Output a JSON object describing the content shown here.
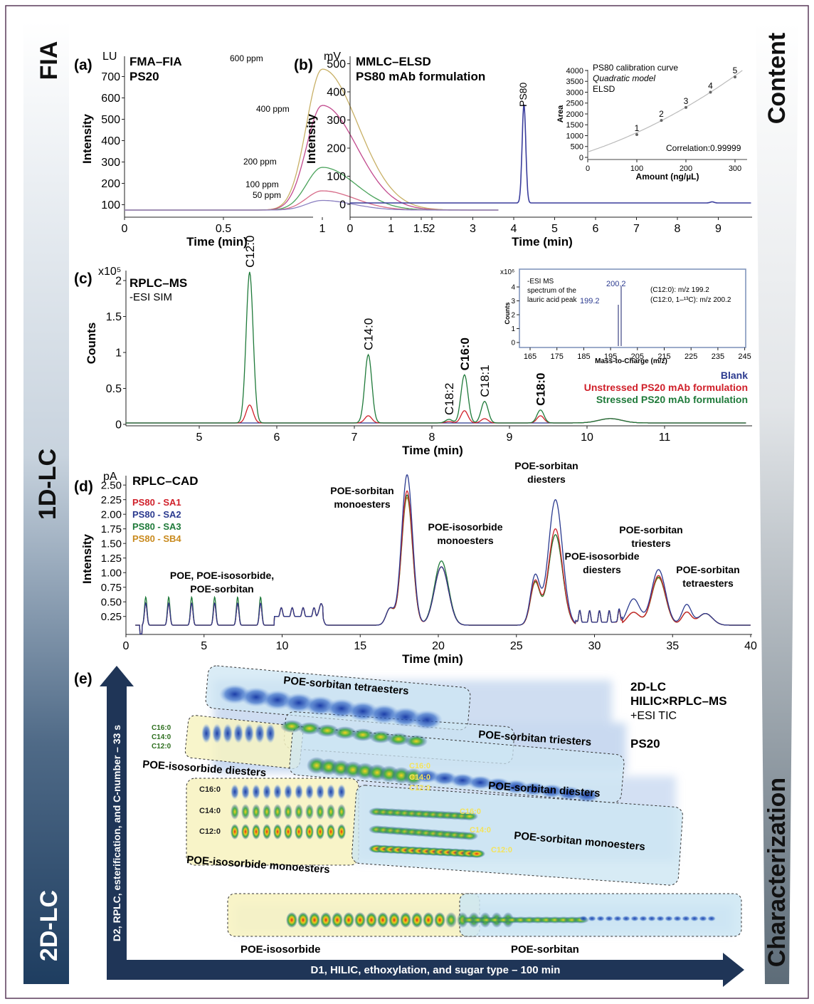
{
  "side_labels": {
    "fia": "FIA",
    "lc1d": "1D-LC",
    "lc2d": "2D-LC",
    "content": "Content",
    "characterization": "Characterization"
  },
  "panel_a": {
    "letter": "(a)",
    "title1": "FMA–FIA",
    "title2": "PS20",
    "unit": "LU",
    "ylabel": "Intensity",
    "xlabel": "Time (min)",
    "xticks": [
      "0",
      "0.5",
      "1",
      "1.5"
    ],
    "yticks": [
      "100",
      "200",
      "300",
      "400",
      "500",
      "600",
      "700"
    ],
    "peaks": [
      {
        "label": "600 ppm",
        "height": 660,
        "color": "#c8b066"
      },
      {
        "label": "400 ppm",
        "height": 490,
        "color": "#c24a8e"
      },
      {
        "label": "200 ppm",
        "height": 200,
        "color": "#4aa35b"
      },
      {
        "label": "100 ppm",
        "height": 90,
        "color": "#d76b88"
      },
      {
        "label": "50 ppm",
        "height": 45,
        "color": "#8a7fc0"
      }
    ]
  },
  "panel_b": {
    "letter": "(b)",
    "title1": "MMLC–ELSD",
    "title2": "PS80 mAb formulation",
    "unit": "mV",
    "ylabel": "Intensity",
    "xlabel": "Time (min)",
    "xticks": [
      "0",
      "1",
      "2",
      "3",
      "4",
      "5",
      "6",
      "7",
      "8",
      "9"
    ],
    "yticks": [
      "0",
      "100",
      "200",
      "300",
      "400",
      "500"
    ],
    "peak_label": "PS80",
    "peak_time": 4.25,
    "peak_height": 350,
    "inset": {
      "title1": "PS80 calibration curve",
      "title2": "Quadratic model",
      "title3": "ELSD",
      "ylabel": "Area",
      "xlabel": "Amount (ng/µL)",
      "correlation": "Correlation:0.99999",
      "yticks": [
        "0",
        "500",
        "1000",
        "1500",
        "2000",
        "2500",
        "3000",
        "3500",
        "4000"
      ],
      "xticks": [
        "0",
        "100",
        "200",
        "300"
      ],
      "points": [
        {
          "label": "1",
          "x": 100,
          "y": 1050
        },
        {
          "label": "2",
          "x": 150,
          "y": 1700
        },
        {
          "label": "3",
          "x": 200,
          "y": 2300
        },
        {
          "label": "4",
          "x": 250,
          "y": 3000
        },
        {
          "label": "5",
          "x": 300,
          "y": 3700
        }
      ]
    }
  },
  "panel_c": {
    "letter": "(c)",
    "title1": "RPLC–MS",
    "title2": "-ESI SIM",
    "unit": "x10⁵",
    "ylabel": "Counts",
    "xlabel": "Time (min)",
    "xticks": [
      "5",
      "6",
      "7",
      "8",
      "9",
      "10",
      "11"
    ],
    "yticks": [
      "0",
      "0.5",
      "1",
      "1.5",
      "2"
    ],
    "peaks": [
      {
        "label": "C12:0",
        "time": 5.65,
        "stressed": 2.1,
        "unstressed": 0.25,
        "bold": false
      },
      {
        "label": "C14:0",
        "time": 7.18,
        "stressed": 0.95,
        "unstressed": 0.1,
        "bold": false
      },
      {
        "label": "C18:2",
        "time": 8.22,
        "stressed": 0.05,
        "unstressed": 0.02,
        "bold": false
      },
      {
        "label": "C16:0",
        "time": 8.42,
        "stressed": 0.67,
        "unstressed": 0.17,
        "bold": true
      },
      {
        "label": "C18:1",
        "time": 8.68,
        "stressed": 0.3,
        "unstressed": 0.06,
        "bold": false
      },
      {
        "label": "C18:0",
        "time": 9.4,
        "stressed": 0.18,
        "unstressed": 0.1,
        "bold": true
      }
    ],
    "legend": [
      {
        "name": "Blank",
        "color": "#2b3a8f"
      },
      {
        "name": "Unstressed PS20 mAb formulation",
        "color": "#d0202a"
      },
      {
        "name": "Stressed PS20 mAb formulation",
        "color": "#1f7a3a"
      }
    ],
    "inset": {
      "unit": "x10⁶",
      "ylabel": "Counts",
      "xlabel": "Mass-to-Charge (m/z)",
      "text1": "-ESI MS",
      "text2": "spectrum of the",
      "text3": "lauric acid peak",
      "ann1": "(C12:0): m/z 199.2",
      "ann2": "(C12:0, 1–¹³C): m/z 200.2",
      "peak1": "200.2",
      "peak2": "199.2",
      "xticks": [
        "165",
        "175",
        "185",
        "195",
        "205",
        "215",
        "225",
        "235",
        "245"
      ],
      "yticks": [
        "0",
        "1",
        "2",
        "3",
        "4"
      ]
    }
  },
  "panel_d": {
    "letter": "(d)",
    "title": "RPLC–CAD",
    "unit": "pA",
    "ylabel": "Intensity",
    "xlabel": "Time (min)",
    "xticks": [
      "0",
      "5",
      "10",
      "15",
      "20",
      "25",
      "30",
      "35",
      "40"
    ],
    "yticks": [
      "0.25",
      "0.50",
      "0.75",
      "1.00",
      "1.25",
      "1.50",
      "1.75",
      "2.00",
      "2.25",
      "2.50"
    ],
    "legend": [
      {
        "name": "PS80 - SA1",
        "color": "#d0202a"
      },
      {
        "name": "PS80 - SA2",
        "color": "#2b3a8f"
      },
      {
        "name": "PS80 - SA3",
        "color": "#1f7a3a"
      },
      {
        "name": "PS80 - SB4",
        "color": "#c98a1e"
      }
    ],
    "annotations": [
      {
        "l1": "POE, POE-isosorbide,",
        "l2": "POE-sorbitan"
      },
      {
        "l1": "POE-sorbitan",
        "l2": "monoesters"
      },
      {
        "l1": "POE-isosorbide",
        "l2": "monoesters"
      },
      {
        "l1": "POE-sorbitan",
        "l2": "diesters"
      },
      {
        "l1": "POE-sorbitan",
        "l2": "triesters"
      },
      {
        "l1": "POE-isosorbide",
        "l2": "diesters"
      },
      {
        "l1": "POE-sorbitan",
        "l2": "tetraesters"
      }
    ]
  },
  "panel_e": {
    "letter": "(e)",
    "title1": "2D-LC",
    "title2": "HILIC×RPLC–MS",
    "title3": "+ESI TIC",
    "title4": "PS20",
    "yaxis": "D2, RPLC, esterification, and C-number – 33 s",
    "xaxis": "D1, HILIC, ethoxylation, and sugar type – 100 min",
    "regions": {
      "sorb_tetra": "POE-sorbitan tetraesters",
      "sorb_tri": "POE-sorbitan triesters",
      "iso_di": "POE-isosorbide diesters",
      "sorb_di": "POE-sorbitan diesters",
      "iso_mono": "POE-isosorbide monoesters",
      "sorb_mono": "POE-sorbitan monoesters",
      "iso": "POE-isosorbide",
      "sorb": "POE-sorbitan"
    },
    "chains": {
      "c16": "C16:0",
      "c14": "C14:0",
      "c12": "C12:0"
    }
  }
}
